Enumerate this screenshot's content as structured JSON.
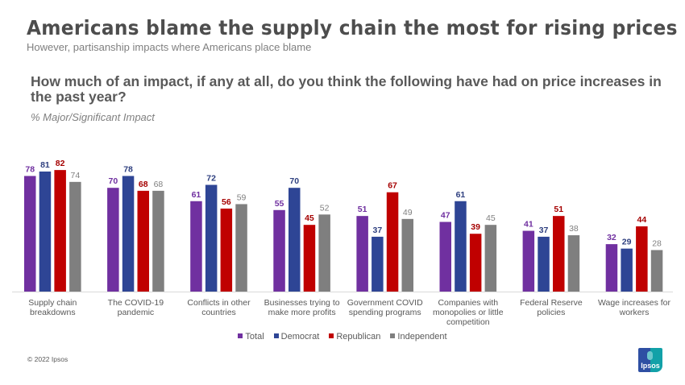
{
  "header": {
    "title": "Americans blame the supply chain the most for rising prices",
    "subtitle": "However, partisanship impacts where Americans place blame",
    "question": "How much of an impact, if any at all, do you think the following have had on price increases in the past year?",
    "question_note": "% Major/Significant Impact"
  },
  "footer": {
    "copyright": "© 2022 Ipsos",
    "logo_text": "Ipsos"
  },
  "colors": {
    "Total": "#7030a0",
    "Democrat": "#2e4595",
    "Republican": "#c00000",
    "Independent": "#7f7f7f"
  },
  "label_colors": {
    "Total": "#7030a0",
    "Democrat": "#2e3f7f",
    "Republican": "#a50000",
    "Independent": "#7f7f7f"
  },
  "chart_data": {
    "type": "bar",
    "title": "How much of an impact, if any at all, do you think the following have had on price increases in the past year?",
    "subtitle": "% Major/Significant Impact",
    "xlabel": "",
    "ylabel": "",
    "ylim": [
      0,
      100
    ],
    "grid": false,
    "legend_position": "bottom",
    "categories": [
      [
        "Supply chain",
        "breakdowns"
      ],
      [
        "The COVID-19",
        "pandemic"
      ],
      [
        "Conflicts in other",
        "countries"
      ],
      [
        "Businesses trying to",
        "make more profits"
      ],
      [
        "Government COVID",
        "spending programs"
      ],
      [
        "Companies with",
        "monopolies or little",
        "competition"
      ],
      [
        "Federal Reserve",
        "policies"
      ],
      [
        "Wage increases for",
        "workers"
      ]
    ],
    "series": [
      {
        "name": "Total",
        "values": [
          78,
          70,
          61,
          55,
          51,
          47,
          41,
          32
        ]
      },
      {
        "name": "Democrat",
        "values": [
          81,
          78,
          72,
          70,
          37,
          61,
          37,
          29
        ]
      },
      {
        "name": "Republican",
        "values": [
          82,
          68,
          56,
          45,
          67,
          39,
          51,
          44
        ]
      },
      {
        "name": "Independent",
        "values": [
          74,
          68,
          59,
          52,
          49,
          45,
          38,
          28
        ]
      }
    ]
  }
}
